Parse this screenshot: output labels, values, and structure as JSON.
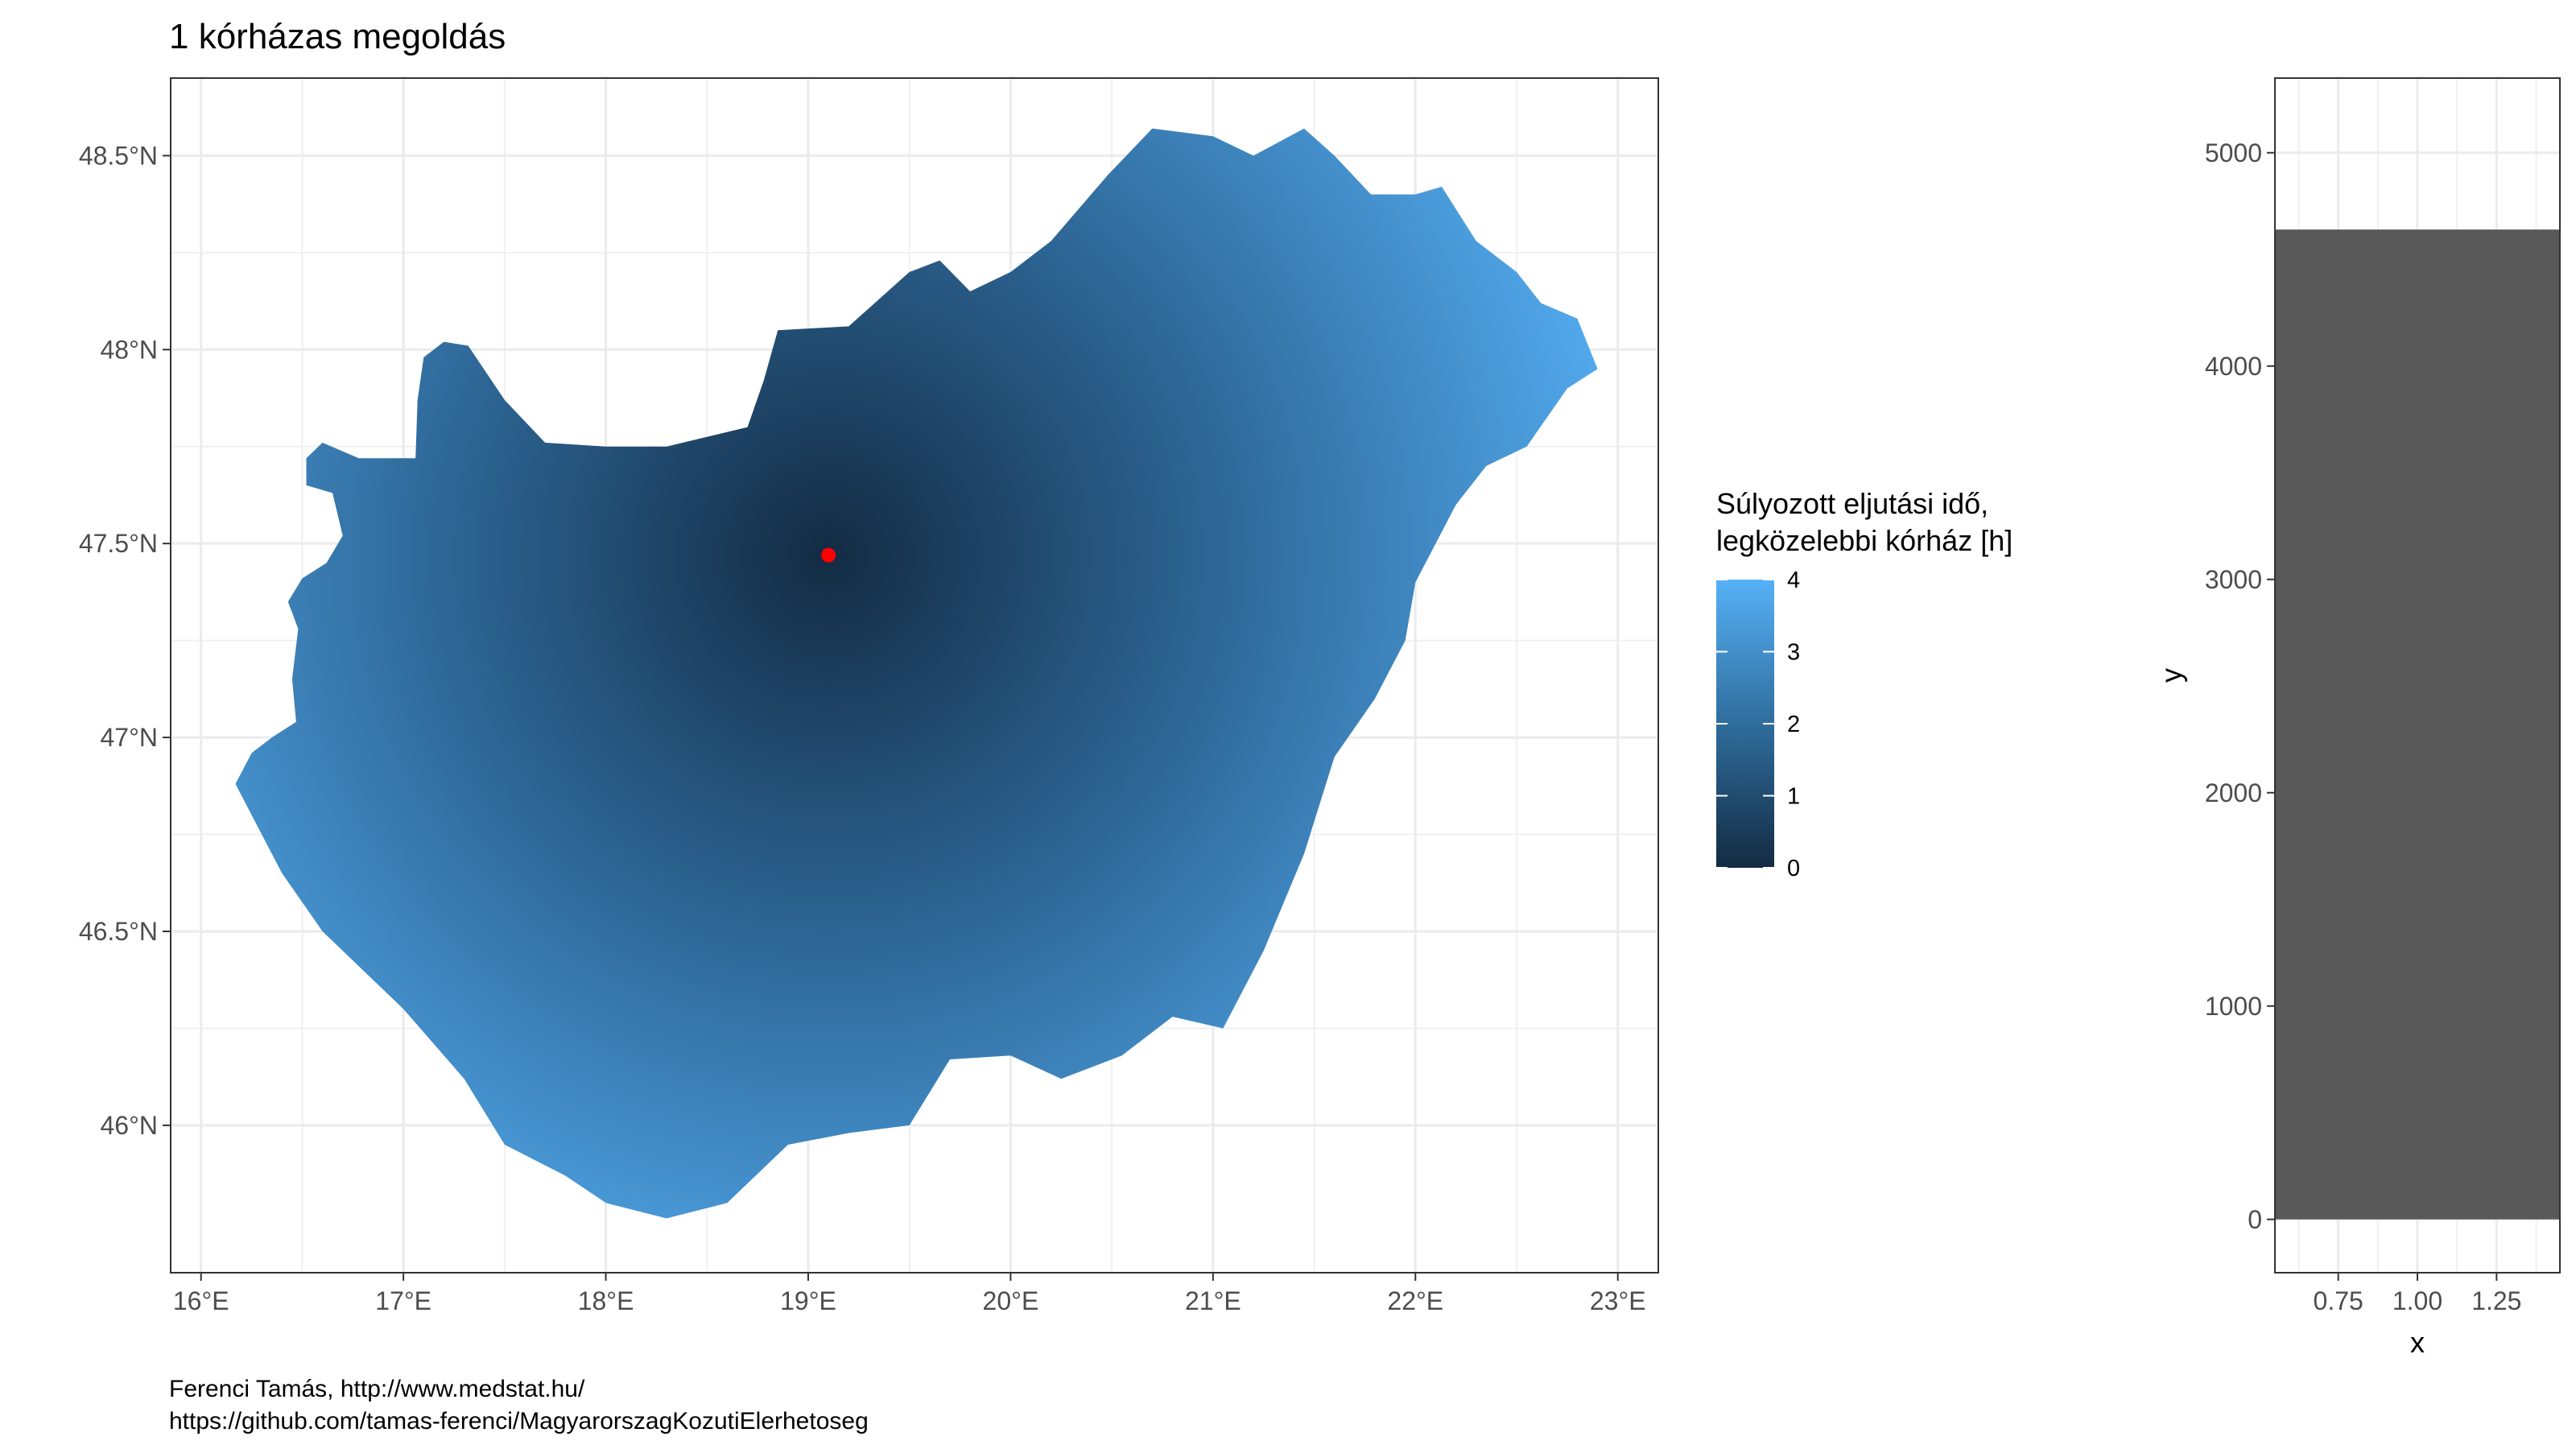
{
  "chart_data": [
    {
      "type": "heatmap",
      "title": "1 kórházas megoldás",
      "xlim": [
        15.85,
        23.2
      ],
      "ylim": [
        45.62,
        48.7
      ],
      "x_ticks": [
        16,
        17,
        18,
        19,
        20,
        21,
        22,
        23
      ],
      "x_tick_labels": [
        "16°E",
        "17°E",
        "18°E",
        "19°E",
        "20°E",
        "21°E",
        "22°E",
        "23°E"
      ],
      "y_ticks": [
        46,
        46.5,
        47,
        47.5,
        48,
        48.5
      ],
      "y_tick_labels": [
        "46°N",
        "46.5°N",
        "47°N",
        "47.5°N",
        "48°N",
        "48.5°N"
      ],
      "grid": true,
      "hospital_point": {
        "lon": 19.1,
        "lat": 47.47,
        "color": "#ff0000"
      },
      "legend": {
        "title_lines": [
          "Súlyozott eljutási idő,",
          "legközelebbi kórház [h]"
        ],
        "min": 0,
        "max": 4,
        "labels": [
          "4",
          "3",
          "2",
          "1",
          "0"
        ],
        "color_low": "#132b43",
        "color_high": "#56b1f7",
        "position": "right"
      }
    },
    {
      "type": "bar",
      "categories": [
        1.0
      ],
      "values": [
        4640
      ],
      "x_ticks": [
        0.75,
        1.0,
        1.25
      ],
      "x_tick_labels": [
        "0.75",
        "1.00",
        "1.25"
      ],
      "y_ticks": [
        0,
        1000,
        2000,
        3000,
        4000,
        5000
      ],
      "y_tick_labels": [
        "0",
        "1000",
        "2000",
        "3000",
        "4000",
        "5000"
      ],
      "xlim": [
        0.55,
        1.45
      ],
      "ylim": [
        -250,
        5350
      ],
      "xlabel": "x",
      "ylabel": "y",
      "bar_color": "#595959",
      "grid": true
    }
  ],
  "caption": {
    "line1": "Ferenci Tamás, http://www.medstat.hu/",
    "line2": "https://github.com/tamas-ferenci/MagyarorszagKozutiElerhetoseg"
  }
}
